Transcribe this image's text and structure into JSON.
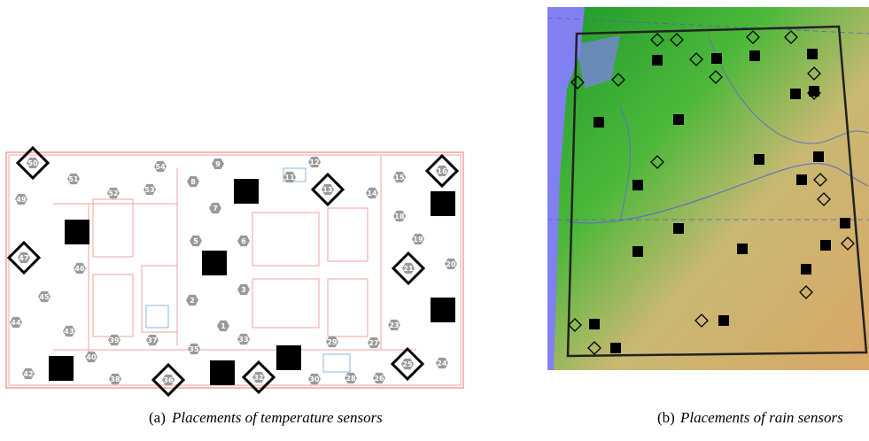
{
  "figures": [
    {
      "label": "(a)",
      "caption": "Placements of temperature sensors",
      "sensor_labels": [
        "50",
        "51",
        "52",
        "53",
        "54",
        "9",
        "8",
        "7",
        "5",
        "6",
        "12",
        "11",
        "13",
        "14",
        "15",
        "16",
        "49",
        "18",
        "19",
        "47",
        "46",
        "21",
        "20",
        "45",
        "44",
        "3",
        "2",
        "43",
        "1",
        "23",
        "39",
        "37",
        "33",
        "29",
        "27",
        "35",
        "40",
        "42",
        "38",
        "36",
        "32",
        "30",
        "28",
        "26",
        "25",
        "24"
      ]
    },
    {
      "label": "(b)",
      "caption": "Placements of rain sensors"
    }
  ]
}
